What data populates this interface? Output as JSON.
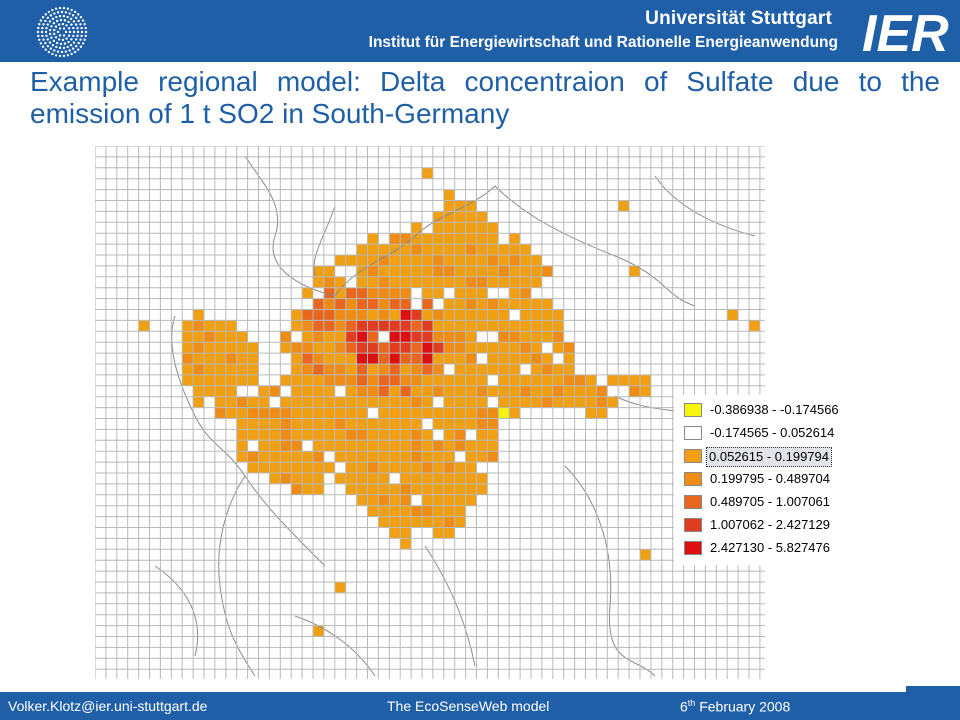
{
  "header": {
    "university": "Universität Stuttgart",
    "institute": "Institut für Energiewirtschaft und Rationelle Energieanwendung",
    "logo_text": "IER"
  },
  "title": "Example regional model:  Delta concentraion of Sulfate due to the emission of 1 t SO2 in South-Germany",
  "legend": {
    "items": [
      {
        "label": "-0.386938 - -0.174566",
        "color": "#f5f510"
      },
      {
        "label": "-0.174565 - 0.052614",
        "color": "#ffffff"
      },
      {
        "label": "0.052615 - 0.199794",
        "color": "#f0a012",
        "highlighted": true
      },
      {
        "label": "0.199795 - 0.489704",
        "color": "#ee8c16"
      },
      {
        "label": "0.489705 - 1.007061",
        "color": "#e8661e"
      },
      {
        "label": "1.007062 - 2.427129",
        "color": "#e03c22"
      },
      {
        "label": "2.427130 - 5.827476",
        "color": "#dc1010"
      }
    ]
  },
  "footer": {
    "email": "Volker.Klotz@ier.uni-stuttgart.de",
    "center": "The EcoSenseWeb model",
    "date_day": "6",
    "date_suffix": "th",
    "date_rest": " February 2008"
  }
}
